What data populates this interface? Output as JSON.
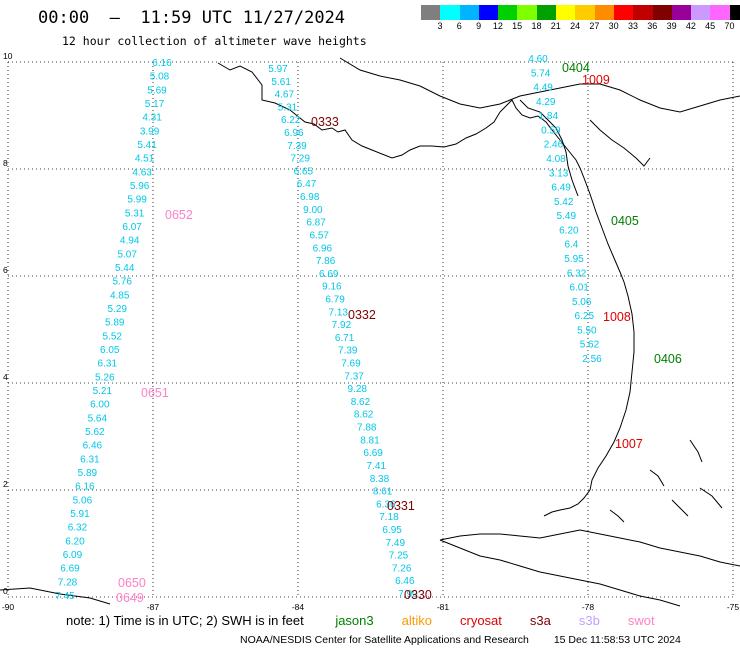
{
  "header": {
    "title": "00:00  –  11:59 UTC 11/27/2024",
    "subtitle": "12 hour collection of altimeter wave heights"
  },
  "colorbar": {
    "unit": "(ft)",
    "colors": [
      "#7f7f7f",
      "#00ffff",
      "#00b4ff",
      "#0000ff",
      "#00d000",
      "#7fff00",
      "#00a000",
      "#ffff00",
      "#ffcc00",
      "#ff8c00",
      "#ff0000",
      "#c00000",
      "#800000",
      "#990099",
      "#cc99ff",
      "#ff66ff",
      "#000000"
    ],
    "labels": [
      "3",
      "6",
      "9",
      "12",
      "15",
      "18",
      "21",
      "24",
      "27",
      "30",
      "33",
      "36",
      "39",
      "42",
      "45",
      "70"
    ]
  },
  "axes": {
    "x_ticks": [
      "-90",
      "-87",
      "-84",
      "-81",
      "-78",
      "-75"
    ],
    "y_ticks": [
      "0",
      "2",
      "4",
      "6",
      "8",
      "10"
    ]
  },
  "tracks": [
    {
      "id": "left",
      "color": "#00c8e8",
      "values": [
        "6.16",
        "5.08",
        "5.69",
        "5.17",
        "4.31",
        "3.99",
        "5.41",
        "4.51",
        "4.63",
        "5.96",
        "5.99",
        "5.31",
        "6.07",
        "4.94",
        "5.07",
        "5.44",
        "5.76",
        "4.85",
        "5.29",
        "5.89",
        "5.52",
        "6.05",
        "6.31",
        "5.26",
        "5.21",
        "6.00",
        "5.64",
        "5.62",
        "6.46",
        "6.31",
        "5.89",
        "6.16",
        "5.06",
        "5.91",
        "6.32",
        "6.20",
        "6.09",
        "6.69",
        "7.28",
        "7.45"
      ]
    },
    {
      "id": "middle",
      "color": "#00c8e8",
      "values": [
        "5.97",
        "5.61",
        "4.67",
        "5.31",
        "6.22",
        "6.96",
        "7.39",
        "7.29",
        "6.65",
        "6.47",
        "6.98",
        "9.00",
        "6.87",
        "6.57",
        "6.96",
        "7.86",
        "6.69",
        "9.16",
        "6.79",
        "7.13",
        "7.92",
        "6.71",
        "7.39",
        "7.69",
        "7.37",
        "9.28",
        "8.62",
        "8.62",
        "7.88",
        "8.81",
        "6.69",
        "7.41",
        "8.38",
        "8.61",
        "6.36",
        "7.18",
        "6.95",
        "7.49",
        "7.25",
        "7.26",
        "6.46",
        "7.90"
      ]
    },
    {
      "id": "right",
      "color": "#00c8e8",
      "values": [
        "4.60",
        "5.74",
        "4.49",
        "4.29",
        "1.84",
        "0.59",
        "2.46",
        "4.08",
        "3.13",
        "6.49",
        "5.42",
        "5.49",
        "6.20",
        "6.4",
        "5.95",
        "6.32",
        "6.01",
        "5.06",
        "6.25",
        "5.50",
        "5.62",
        "2.56"
      ]
    }
  ],
  "satellite_passes": [
    {
      "label": "0652",
      "color": "#ff80c8"
    },
    {
      "label": "0651",
      "color": "#ff80c8"
    },
    {
      "label": "0650",
      "color": "#ff80c8"
    },
    {
      "label": "0649",
      "color": "#ff80c8"
    },
    {
      "label": "0333",
      "color": "#800000"
    },
    {
      "label": "0332",
      "color": "#800000"
    },
    {
      "label": "0331",
      "color": "#800000"
    },
    {
      "label": "0330",
      "color": "#800000"
    },
    {
      "label": "0404",
      "color": "#008000"
    },
    {
      "label": "0405",
      "color": "#008000"
    },
    {
      "label": "0406",
      "color": "#008000"
    },
    {
      "label": "1009",
      "color": "#e00000"
    },
    {
      "label": "1008",
      "color": "#e00000"
    },
    {
      "label": "1007",
      "color": "#e00000"
    }
  ],
  "notes": {
    "prefix": "note:  1) Time is in UTC; 2) SWH is in feet",
    "satellites": [
      {
        "name": "jason3",
        "color": "#008000"
      },
      {
        "name": "altiko",
        "color": "#ff9900"
      },
      {
        "name": "cryosat",
        "color": "#e00000"
      },
      {
        "name": "s3a",
        "color": "#800000"
      },
      {
        "name": "s3b",
        "color": "#c0a0ff"
      },
      {
        "name": "swot",
        "color": "#ff80c8"
      }
    ]
  },
  "footer": {
    "credit": "NOAA/NESDIS Center for Satellite Applications and Research",
    "timestamp": "15 Dec 11:58:53 UTC 2024"
  }
}
